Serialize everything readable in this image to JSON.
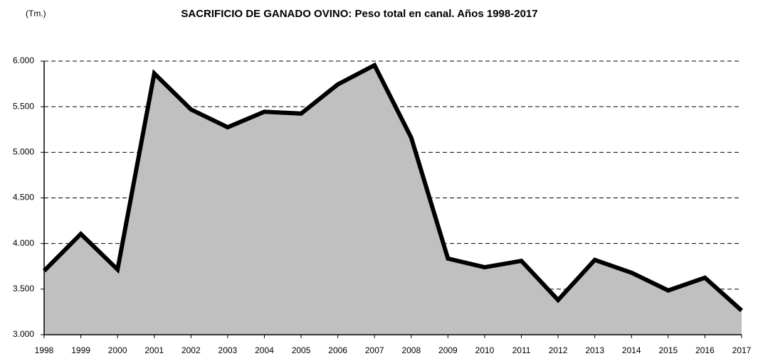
{
  "chart_data": {
    "type": "area",
    "title": "SACRIFICIO DE GANADO OVINO: Peso total en canal. Años 1998-2017",
    "y_label": "(Tm.)",
    "categories": [
      "1998",
      "1999",
      "2000",
      "2001",
      "2002",
      "2003",
      "2004",
      "2005",
      "2006",
      "2007",
      "2008",
      "2009",
      "2010",
      "2011",
      "2012",
      "2013",
      "2014",
      "2015",
      "2016",
      "2017"
    ],
    "values": [
      3700,
      4105,
      3715,
      5865,
      5470,
      5275,
      5445,
      5425,
      5745,
      5955,
      5160,
      3835,
      3740,
      3810,
      3380,
      3820,
      3680,
      3485,
      3625,
      3265
    ],
    "color": "#000000",
    "fill": "#c0c0c0",
    "ylim": [
      3000,
      6000
    ],
    "yticks": [
      {
        "value": 3000,
        "label": "3.000"
      },
      {
        "value": 3500,
        "label": "3.500"
      },
      {
        "value": 4000,
        "label": "4.000"
      },
      {
        "value": 4500,
        "label": "4.500"
      },
      {
        "value": 5000,
        "label": "5.000"
      },
      {
        "value": 5500,
        "label": "5.500"
      },
      {
        "value": 6000,
        "label": "6.000"
      }
    ],
    "grid": true
  }
}
